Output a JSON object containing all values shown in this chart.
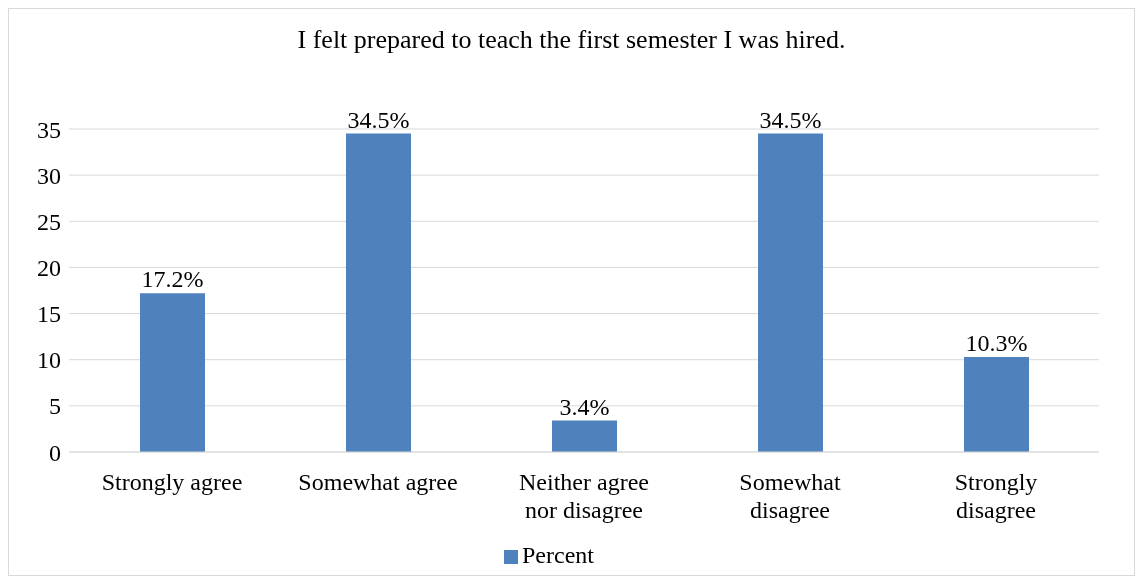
{
  "chart_data": {
    "type": "bar",
    "title": "I felt prepared to teach the first semester I was hired.",
    "categories": [
      "Strongly agree",
      "Somewhat agree",
      "Neither agree nor disagree",
      "Somewhat disagree",
      "Strongly disagree"
    ],
    "series": [
      {
        "name": "Percent",
        "color": "#4f81bd",
        "values": [
          17.2,
          34.5,
          3.4,
          34.5,
          10.3
        ],
        "value_labels": [
          "17.2%",
          "34.5%",
          "3.4%",
          "34.5%",
          "10.3%"
        ]
      }
    ],
    "ylim": [
      0,
      35
    ],
    "yticks": [
      0,
      5,
      10,
      15,
      20,
      25,
      30,
      35
    ],
    "grid": "y",
    "legend": "bottom"
  }
}
